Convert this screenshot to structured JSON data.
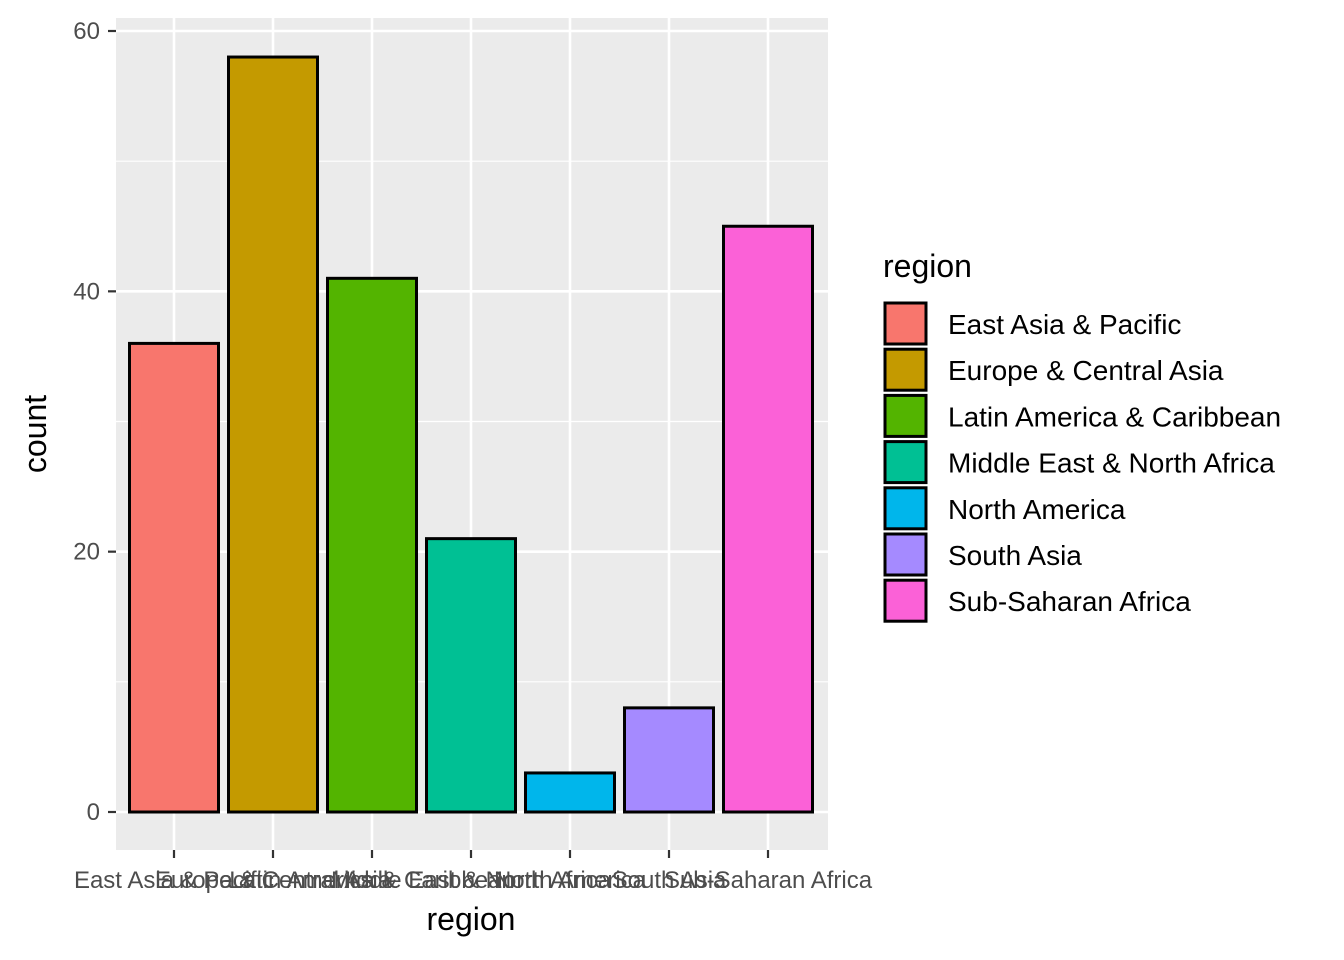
{
  "chart_data": {
    "type": "bar",
    "categories": [
      "East Asia & Pacific",
      "Europe & Central Asia",
      "Latin America & Caribbean",
      "Middle East & North Africa",
      "North America",
      "South Asia",
      "Sub-Saharan Africa"
    ],
    "values": [
      36,
      58,
      41,
      21,
      3,
      8,
      45
    ],
    "colors": [
      "#F8766D",
      "#C49A00",
      "#53B400",
      "#00C094",
      "#00B6EB",
      "#A58AFF",
      "#FB61D7"
    ],
    "bar_outline_color": "#000000",
    "panel_background": "#EBEBEB",
    "grid": true,
    "xlabel": "region",
    "ylabel": "count",
    "ylim": [
      -2.9,
      61
    ],
    "y_ticks": [
      0,
      20,
      40,
      60
    ],
    "y_minor_ticks": [
      10,
      30,
      50
    ],
    "legend": {
      "title": "region",
      "position": "right",
      "items": [
        "East Asia & Pacific",
        "Europe & Central Asia",
        "Latin America & Caribbean",
        "Middle East & North Africa",
        "North America",
        "South Asia",
        "Sub-Saharan Africa"
      ]
    }
  }
}
